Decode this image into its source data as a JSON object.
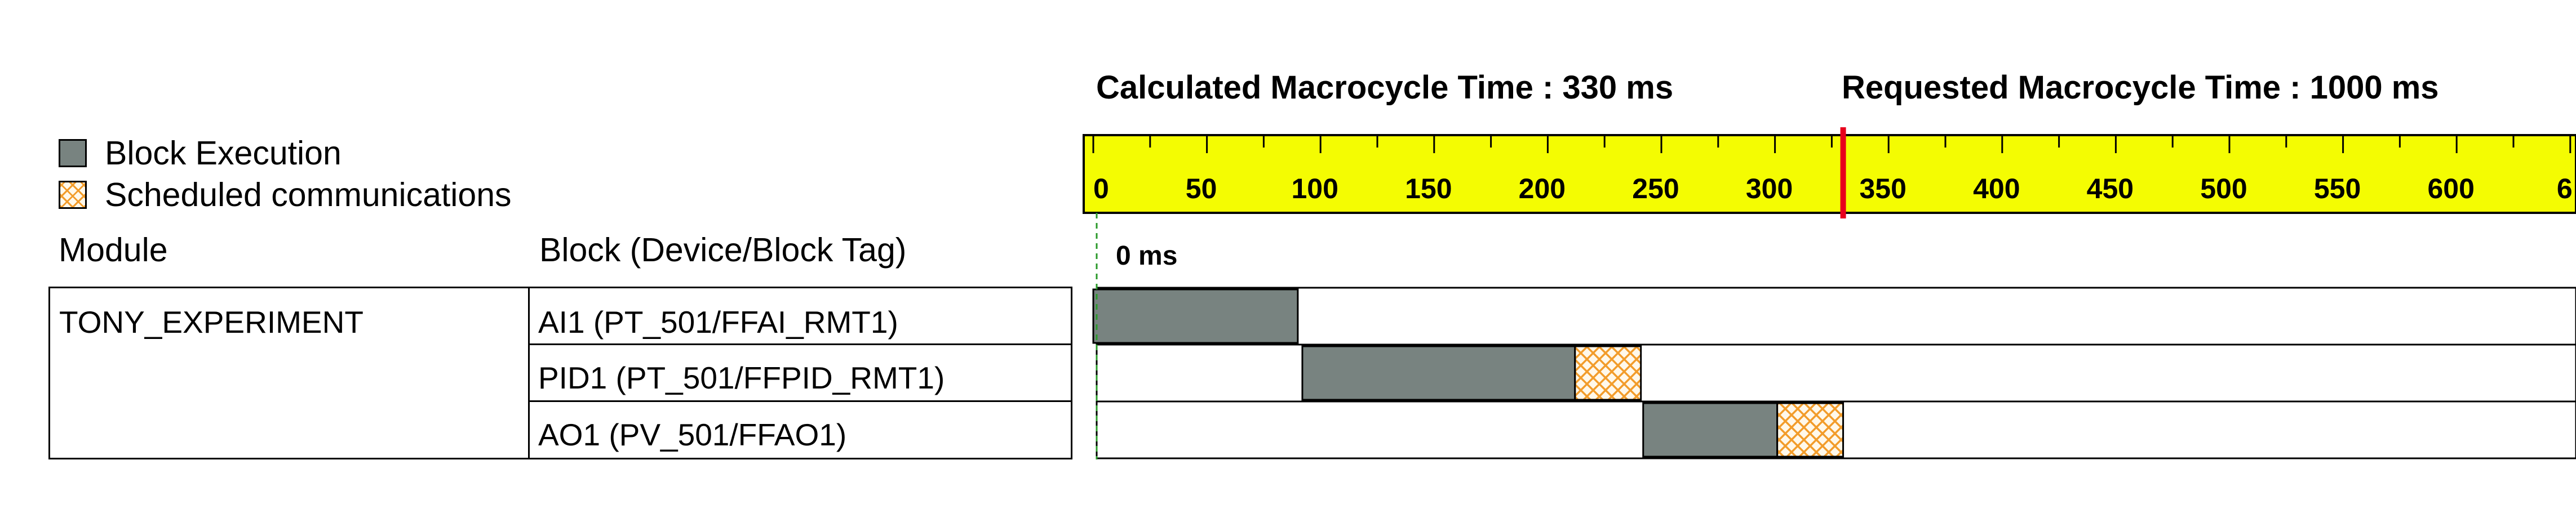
{
  "header": {
    "calculated_label": "Calculated Macrocycle Time : 330 ms",
    "requested_label": "Requested Macrocycle Time : 1000 ms",
    "calculated_ms": 330,
    "requested_ms": 1000
  },
  "legend": {
    "execution_label": "Block Execution",
    "communication_label": "Scheduled communications"
  },
  "columns": {
    "module": "Module",
    "block": "Block (Device/Block Tag)"
  },
  "module_name": "TONY_EXPERIMENT",
  "blocks": [
    {
      "tag": "AI1 (PT_501/FFAI_RMT1)",
      "exec_start_ms": 0,
      "exec_end_ms": 90,
      "comm_start_ms": null,
      "comm_end_ms": null
    },
    {
      "tag": "PID1 (PT_501/FFPID_RMT1)",
      "exec_start_ms": 92,
      "exec_end_ms": 212,
      "comm_start_ms": 212,
      "comm_end_ms": 241
    },
    {
      "tag": "AO1 (PV_501/FFAO1)",
      "exec_start_ms": 242,
      "exec_end_ms": 301,
      "comm_start_ms": 301,
      "comm_end_ms": 330
    }
  ],
  "timeline": {
    "start_label": "0 ms",
    "tick_labels": [
      "0",
      "50",
      "100",
      "150",
      "200",
      "250",
      "300",
      "350",
      "400",
      "450",
      "500",
      "550",
      "600",
      "6"
    ],
    "visible_max_ms": 655,
    "marker_ms": 330
  },
  "colors": {
    "ruler_bg": "#f4fc02",
    "execution": "#788380",
    "communication": "#f29c2a",
    "communication_bg": "#fff8ea",
    "marker": "#e8001c",
    "start_line": "#2a9a2a"
  }
}
